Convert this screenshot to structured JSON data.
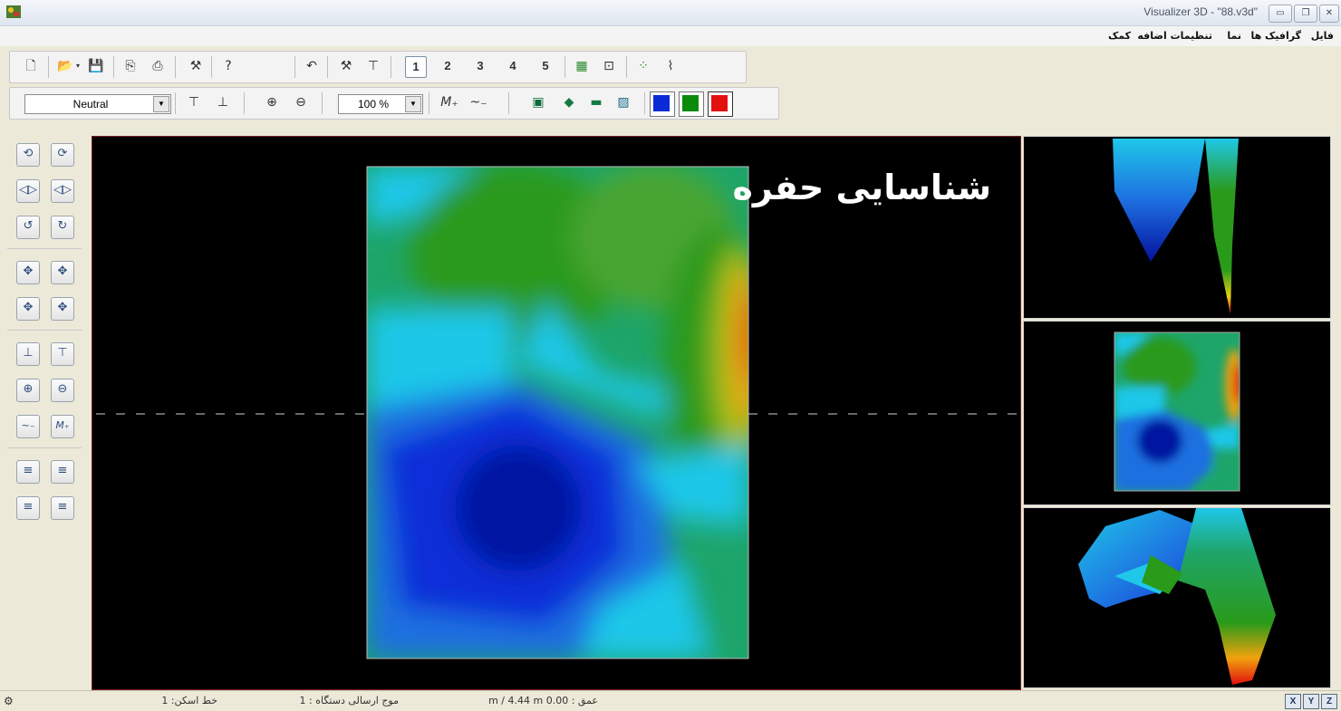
{
  "window": {
    "title": "Visualizer 3D - \"88.v3d\"",
    "controls": [
      "minimize",
      "maximize",
      "close"
    ]
  },
  "menu": {
    "items": [
      "فایل",
      "گرافیک ها",
      "نما",
      "تنظیمات اضافه",
      "کمک"
    ]
  },
  "toolbar1": {
    "view_numbers": [
      "1",
      "2",
      "3",
      "4",
      "5"
    ],
    "selected_view": "1"
  },
  "toolbar2": {
    "filter_value": "Neutral",
    "zoom_value": "100 %",
    "color_swatches": [
      "#0b2bd6",
      "#0b8a0b",
      "#e31010"
    ]
  },
  "viewport": {
    "overlay_text": "شناسایی حفره",
    "colormap": [
      "#0010c8",
      "#1e6fe0",
      "#1fc7e8",
      "#1ea56a",
      "#2a9a1a",
      "#f2a20d",
      "#e01010"
    ]
  },
  "status": {
    "line": "خط اسکن: 1",
    "wave": "موج ارسالی دستگاه : 1",
    "depth": "عمق : 0.00 m / 4.44 m",
    "axes": [
      "X",
      "Y",
      "Z"
    ]
  }
}
